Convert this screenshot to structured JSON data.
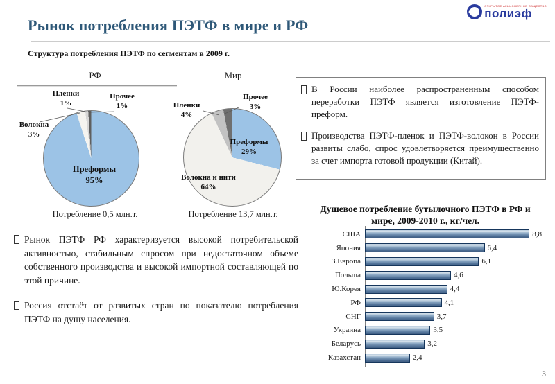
{
  "slide": {
    "title": "Рынок потребления ПЭТФ в мире и РФ",
    "section_heading": "Структура потребления ПЭТФ по сегментам в 2009 г.",
    "page_number": "3"
  },
  "logo": {
    "name": "полиэф",
    "small_text": "ОТКРЫТОЕ АКЦИОНЕРНОЕ ОБЩЕСТВО"
  },
  "info_box": {
    "bullets": [
      "В России наиболее распространенным способом переработки ПЭТФ является изготовление ПЭТФ-преформ.",
      "Производства ПЭТФ-пленок и ПЭТФ-волокон в России развиты слабо, спрос удовлетворяется преимущественно за счет импорта готовой продукции (Китай)."
    ]
  },
  "left_bullets": [
    "Рынок ПЭТФ РФ характеризуется высокой потребительской активностью, стабильным спросом при недостаточном объеме собственного производства и высокой импортной составляющей по этой причине.",
    "Россия отстаёт от развитых стран по показателю потребления ПЭТФ на душу населения."
  ],
  "colors": {
    "title_blue": "#2E5878",
    "logo_blue": "#2A3B9E",
    "pie_blue": "#9CC3E6",
    "bar_border": "#16365C"
  },
  "chart_data": [
    {
      "id": "pie_rf",
      "type": "pie",
      "title": "РФ",
      "caption": "Потребление 0,5 млн.т.",
      "start_angle_deg": 0,
      "direction": "clockwise",
      "slices": [
        {
          "name": "Преформы",
          "value": 95,
          "pct": "95%",
          "color": "#9CC3E6"
        },
        {
          "name": "Волокна",
          "value": 3,
          "pct": "3%",
          "color": "#F5F4F0"
        },
        {
          "name": "Пленки",
          "value": 1,
          "pct": "1%",
          "color": "#D6D6D6"
        },
        {
          "name": "Прочее",
          "value": 1,
          "pct": "1%",
          "color": "#5F5F5F"
        }
      ]
    },
    {
      "id": "pie_world",
      "type": "pie",
      "title": "Мир",
      "caption": "Потребление 13,7 млн.т.",
      "start_angle_deg": 0,
      "direction": "clockwise",
      "slices": [
        {
          "name": "Преформы",
          "value": 29,
          "pct": "29%",
          "color": "#9CC3E6"
        },
        {
          "name": "Волокна и нити",
          "value": 64,
          "pct": "64%",
          "color": "#F2F1ED"
        },
        {
          "name": "Пленки",
          "value": 4,
          "pct": "4%",
          "color": "#C2C2C2"
        },
        {
          "name": "Прочее",
          "value": 3,
          "pct": "3%",
          "color": "#6F6F6F"
        }
      ]
    },
    {
      "id": "bar_per_capita",
      "type": "bar",
      "orientation": "horizontal",
      "title": "Душевое потребление бутылочного ПЭТФ в РФ и мире, 2009-2010 г., кг/чел.",
      "categories": [
        "США",
        "Япония",
        "З.Европа",
        "Польша",
        "Ю.Корея",
        "РФ",
        "СНГ",
        "Украина",
        "Беларусь",
        "Казахстан"
      ],
      "values": [
        8.8,
        6.4,
        6.1,
        4.6,
        4.4,
        4.1,
        3.7,
        3.5,
        3.2,
        2.4
      ],
      "value_labels": [
        "8,8",
        "6,4",
        "6,1",
        "4,6",
        "4,4",
        "4,1",
        "3,7",
        "3,5",
        "3,2",
        "2,4"
      ],
      "xlim": [
        0,
        9.2
      ],
      "grid": false,
      "legend": "none"
    }
  ]
}
